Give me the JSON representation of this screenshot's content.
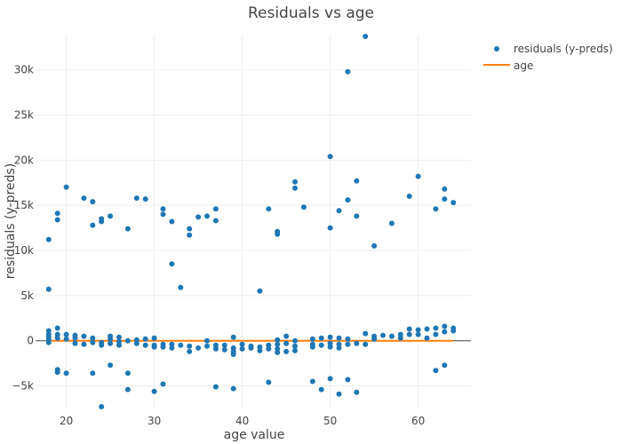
{
  "chart_data": {
    "type": "scatter",
    "title": "Residuals vs age",
    "xlabel": "age value",
    "ylabel": "residuals (y-preds)",
    "xlim": [
      16.5,
      66
    ],
    "ylim": [
      -7500,
      33800
    ],
    "x_ticks": [
      20,
      30,
      40,
      50,
      60
    ],
    "x_tick_labels": [
      "20",
      "30",
      "40",
      "50",
      "60"
    ],
    "y_ticks": [
      -5000,
      0,
      5000,
      10000,
      15000,
      20000,
      25000,
      30000
    ],
    "y_tick_labels": [
      "−5k",
      "0",
      "5k",
      "10k",
      "15k",
      "20k",
      "25k",
      "30k"
    ],
    "grid": true,
    "legend_position": "top-right",
    "colors": {
      "residuals": "#1f77b4",
      "age": "#ff7f0e",
      "zero_line": "#444444",
      "grid": "#eeeeee"
    },
    "series": [
      {
        "name": "residuals (y-preds)",
        "type": "scatter",
        "points": [
          [
            18,
            11200
          ],
          [
            18,
            5700
          ],
          [
            18,
            1100
          ],
          [
            18,
            700
          ],
          [
            18,
            400
          ],
          [
            18,
            100
          ],
          [
            18,
            -200
          ],
          [
            19,
            14100
          ],
          [
            19,
            13400
          ],
          [
            19,
            1400
          ],
          [
            19,
            700
          ],
          [
            19,
            300
          ],
          [
            19,
            -3200
          ],
          [
            19,
            -3500
          ],
          [
            20,
            17000
          ],
          [
            20,
            700
          ],
          [
            20,
            200
          ],
          [
            20,
            -3600
          ],
          [
            21,
            600
          ],
          [
            21,
            300
          ],
          [
            21,
            -300
          ],
          [
            22,
            15800
          ],
          [
            22,
            500
          ],
          [
            22,
            -400
          ],
          [
            23,
            15400
          ],
          [
            23,
            12800
          ],
          [
            23,
            300
          ],
          [
            23,
            -200
          ],
          [
            23,
            -3600
          ],
          [
            24,
            13500
          ],
          [
            24,
            13200
          ],
          [
            24,
            -200
          ],
          [
            24,
            -500
          ],
          [
            24,
            -7300
          ],
          [
            25,
            13800
          ],
          [
            25,
            500
          ],
          [
            25,
            200
          ],
          [
            25,
            -300
          ],
          [
            25,
            -2700
          ],
          [
            26,
            400
          ],
          [
            26,
            -100
          ],
          [
            26,
            -500
          ],
          [
            27,
            12400
          ],
          [
            27,
            0
          ],
          [
            27,
            -3600
          ],
          [
            27,
            -5400
          ],
          [
            28,
            15800
          ],
          [
            28,
            100
          ],
          [
            28,
            -300
          ],
          [
            29,
            15700
          ],
          [
            29,
            200
          ],
          [
            29,
            -500
          ],
          [
            30,
            300
          ],
          [
            30,
            -500
          ],
          [
            30,
            -700
          ],
          [
            30,
            -5600
          ],
          [
            31,
            14600
          ],
          [
            31,
            14000
          ],
          [
            31,
            -400
          ],
          [
            31,
            -700
          ],
          [
            31,
            -4800
          ],
          [
            32,
            13200
          ],
          [
            32,
            8500
          ],
          [
            32,
            -400
          ],
          [
            32,
            -800
          ],
          [
            33,
            5900
          ],
          [
            33,
            -500
          ],
          [
            34,
            12400
          ],
          [
            34,
            11700
          ],
          [
            34,
            -600
          ],
          [
            34,
            -1200
          ],
          [
            35,
            13700
          ],
          [
            35,
            -800
          ],
          [
            36,
            13800
          ],
          [
            36,
            0
          ],
          [
            36,
            -600
          ],
          [
            37,
            14600
          ],
          [
            37,
            13300
          ],
          [
            37,
            -500
          ],
          [
            37,
            -900
          ],
          [
            37,
            -5100
          ],
          [
            38,
            -500
          ],
          [
            38,
            -1000
          ],
          [
            39,
            400
          ],
          [
            39,
            -800
          ],
          [
            39,
            -1200
          ],
          [
            39,
            -1500
          ],
          [
            39,
            -5300
          ],
          [
            40,
            -400
          ],
          [
            40,
            -900
          ],
          [
            41,
            -600
          ],
          [
            41,
            -800
          ],
          [
            42,
            5500
          ],
          [
            42,
            -700
          ],
          [
            42,
            -1100
          ],
          [
            43,
            14600
          ],
          [
            43,
            -500
          ],
          [
            43,
            -900
          ],
          [
            43,
            -4600
          ],
          [
            44,
            12100
          ],
          [
            44,
            11800
          ],
          [
            44,
            100
          ],
          [
            44,
            -400
          ],
          [
            44,
            -900
          ],
          [
            44,
            -1300
          ],
          [
            45,
            500
          ],
          [
            45,
            -300
          ],
          [
            45,
            -1200
          ],
          [
            46,
            17600
          ],
          [
            46,
            16900
          ],
          [
            46,
            0
          ],
          [
            46,
            -600
          ],
          [
            46,
            -1100
          ],
          [
            47,
            14800
          ],
          [
            48,
            200
          ],
          [
            48,
            -400
          ],
          [
            48,
            -700
          ],
          [
            48,
            -4500
          ],
          [
            49,
            300
          ],
          [
            49,
            -500
          ],
          [
            49,
            -5400
          ],
          [
            50,
            20400
          ],
          [
            50,
            12500
          ],
          [
            50,
            400
          ],
          [
            50,
            -300
          ],
          [
            50,
            -700
          ],
          [
            50,
            -4200
          ],
          [
            51,
            14400
          ],
          [
            51,
            300
          ],
          [
            51,
            -400
          ],
          [
            51,
            -800
          ],
          [
            51,
            -5900
          ],
          [
            52,
            29800
          ],
          [
            52,
            15600
          ],
          [
            52,
            200
          ],
          [
            52,
            -400
          ],
          [
            52,
            -4300
          ],
          [
            53,
            17700
          ],
          [
            53,
            13800
          ],
          [
            53,
            -300
          ],
          [
            53,
            -5700
          ],
          [
            54,
            33700
          ],
          [
            54,
            800
          ],
          [
            54,
            -400
          ],
          [
            55,
            10500
          ],
          [
            55,
            500
          ],
          [
            55,
            200
          ],
          [
            56,
            600
          ],
          [
            57,
            13000
          ],
          [
            57,
            500
          ],
          [
            58,
            700
          ],
          [
            58,
            300
          ],
          [
            59,
            16000
          ],
          [
            59,
            1300
          ],
          [
            59,
            700
          ],
          [
            60,
            18200
          ],
          [
            60,
            1200
          ],
          [
            60,
            700
          ],
          [
            61,
            1300
          ],
          [
            61,
            300
          ],
          [
            62,
            14600
          ],
          [
            62,
            1400
          ],
          [
            62,
            700
          ],
          [
            62,
            -3300
          ],
          [
            63,
            16800
          ],
          [
            63,
            15700
          ],
          [
            63,
            1600
          ],
          [
            63,
            1000
          ],
          [
            63,
            -2700
          ],
          [
            64,
            15300
          ],
          [
            64,
            1400
          ],
          [
            64,
            1100
          ]
        ]
      },
      {
        "name": "age",
        "type": "line",
        "points": [
          [
            18,
            0
          ],
          [
            64,
            0
          ]
        ]
      }
    ]
  }
}
